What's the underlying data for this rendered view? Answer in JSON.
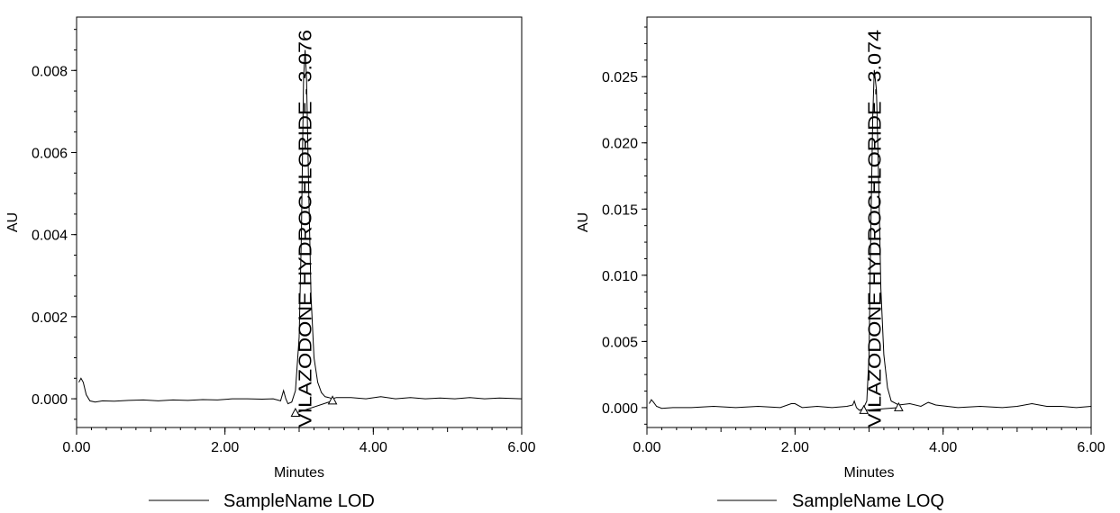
{
  "chart_data": [
    {
      "type": "line",
      "ylabel": "AU",
      "xlabel": "Minutes",
      "xlim": [
        0.0,
        6.0
      ],
      "ylim": [
        -0.0007,
        0.0093
      ],
      "x_ticks": [
        0.0,
        2.0,
        4.0,
        6.0
      ],
      "x_tick_labels": [
        "0.00",
        "2.00",
        "4.00",
        "6.00"
      ],
      "y_ticks": [
        0.0,
        0.002,
        0.004,
        0.006,
        0.008
      ],
      "y_tick_labels": [
        "0.000",
        "0.002",
        "0.004",
        "0.006",
        "0.008"
      ],
      "grid": false,
      "legend": "bottom",
      "series": [
        {
          "name": "SampleName LOD",
          "color": "#000000",
          "x": [
            0.03,
            0.06,
            0.09,
            0.13,
            0.18,
            0.25,
            0.35,
            0.5,
            0.7,
            0.9,
            1.1,
            1.3,
            1.5,
            1.7,
            1.9,
            2.1,
            2.3,
            2.5,
            2.65,
            2.75,
            2.79,
            2.82,
            2.85,
            2.9,
            2.95,
            3.0,
            3.03,
            3.06,
            3.08,
            3.1,
            3.13,
            3.16,
            3.2,
            3.25,
            3.3,
            3.35,
            3.4,
            3.45,
            3.5,
            3.7,
            3.9,
            4.1,
            4.3,
            4.5,
            4.7,
            4.9,
            5.1,
            5.3,
            5.5,
            5.7,
            6.0
          ],
          "y": [
            0.0004,
            0.0005,
            0.0004,
            0.0001,
            -5e-05,
            -8e-05,
            -5e-05,
            -6e-05,
            -4e-05,
            -3e-05,
            -5e-05,
            -3e-05,
            -4e-05,
            -2e-05,
            -3e-05,
            0.0,
            0.0,
            -1e-05,
            0.0,
            -5e-05,
            0.0002,
            0.0,
            -0.00012,
            -8e-05,
            0.0002,
            0.0015,
            0.004,
            0.0078,
            0.0085,
            0.0078,
            0.005,
            0.0025,
            0.001,
            0.0004,
            0.00015,
            5e-05,
            3e-05,
            0.0,
            3e-05,
            3e-05,
            0.0,
            5e-05,
            0.0,
            3e-05,
            0.0,
            2e-05,
            0.0,
            3e-05,
            0.0,
            2e-05,
            0.0
          ]
        }
      ],
      "peak_label": "VILAZODONE HYDROCHLORIDE - 3.076",
      "peak_rt": 3.076,
      "baseline_markers": [
        {
          "x": 2.95,
          "y": -0.00035
        },
        {
          "x": 3.45,
          "y": -5e-05
        }
      ]
    },
    {
      "type": "line",
      "ylabel": "AU",
      "xlabel": "Minutes",
      "xlim": [
        0.0,
        6.0
      ],
      "ylim": [
        -0.0015,
        0.0295
      ],
      "x_ticks": [
        0.0,
        2.0,
        4.0,
        6.0
      ],
      "x_tick_labels": [
        "0.00",
        "2.00",
        "4.00",
        "6.00"
      ],
      "y_ticks": [
        0.0,
        0.005,
        0.01,
        0.015,
        0.02,
        0.025
      ],
      "y_tick_labels": [
        "0.000",
        "0.005",
        "0.010",
        "0.015",
        "0.020",
        "0.025"
      ],
      "grid": false,
      "legend": "bottom",
      "series": [
        {
          "name": "SampleName LOQ",
          "color": "#000000",
          "x": [
            0.03,
            0.06,
            0.09,
            0.13,
            0.2,
            0.35,
            0.6,
            0.9,
            1.2,
            1.5,
            1.8,
            1.95,
            2.0,
            2.1,
            2.3,
            2.5,
            2.7,
            2.78,
            2.8,
            2.83,
            2.87,
            2.92,
            2.97,
            3.0,
            3.02,
            3.05,
            3.07,
            3.1,
            3.13,
            3.16,
            3.2,
            3.25,
            3.3,
            3.4,
            3.55,
            3.7,
            3.8,
            3.9,
            4.2,
            4.5,
            4.8,
            5.0,
            5.2,
            5.4,
            5.6,
            5.8,
            6.0
          ],
          "y": [
            0.0003,
            0.0006,
            0.0004,
            0.0001,
            -5e-05,
            0.0,
            0.0,
            0.0001,
            0.0,
            0.0001,
            0.0,
            0.0003,
            0.0003,
            0.0,
            0.0001,
            0.0,
            0.0001,
            0.0002,
            0.0005,
            0.0,
            -0.0002,
            -0.0001,
            0.0005,
            0.004,
            0.012,
            0.022,
            0.0255,
            0.024,
            0.017,
            0.009,
            0.004,
            0.0015,
            0.0005,
            0.0002,
            0.0003,
            0.0001,
            0.0004,
            0.0002,
            0.0,
            0.0001,
            0.0,
            0.0001,
            0.0003,
            0.0001,
            0.0001,
            0.0,
            0.0001
          ]
        }
      ],
      "peak_label": "VILAZODONE HYDROCHLORIDE - 3.074",
      "peak_rt": 3.074,
      "baseline_markers": [
        {
          "x": 2.93,
          "y": -0.0002
        },
        {
          "x": 3.4,
          "y": 0.0
        }
      ]
    }
  ]
}
